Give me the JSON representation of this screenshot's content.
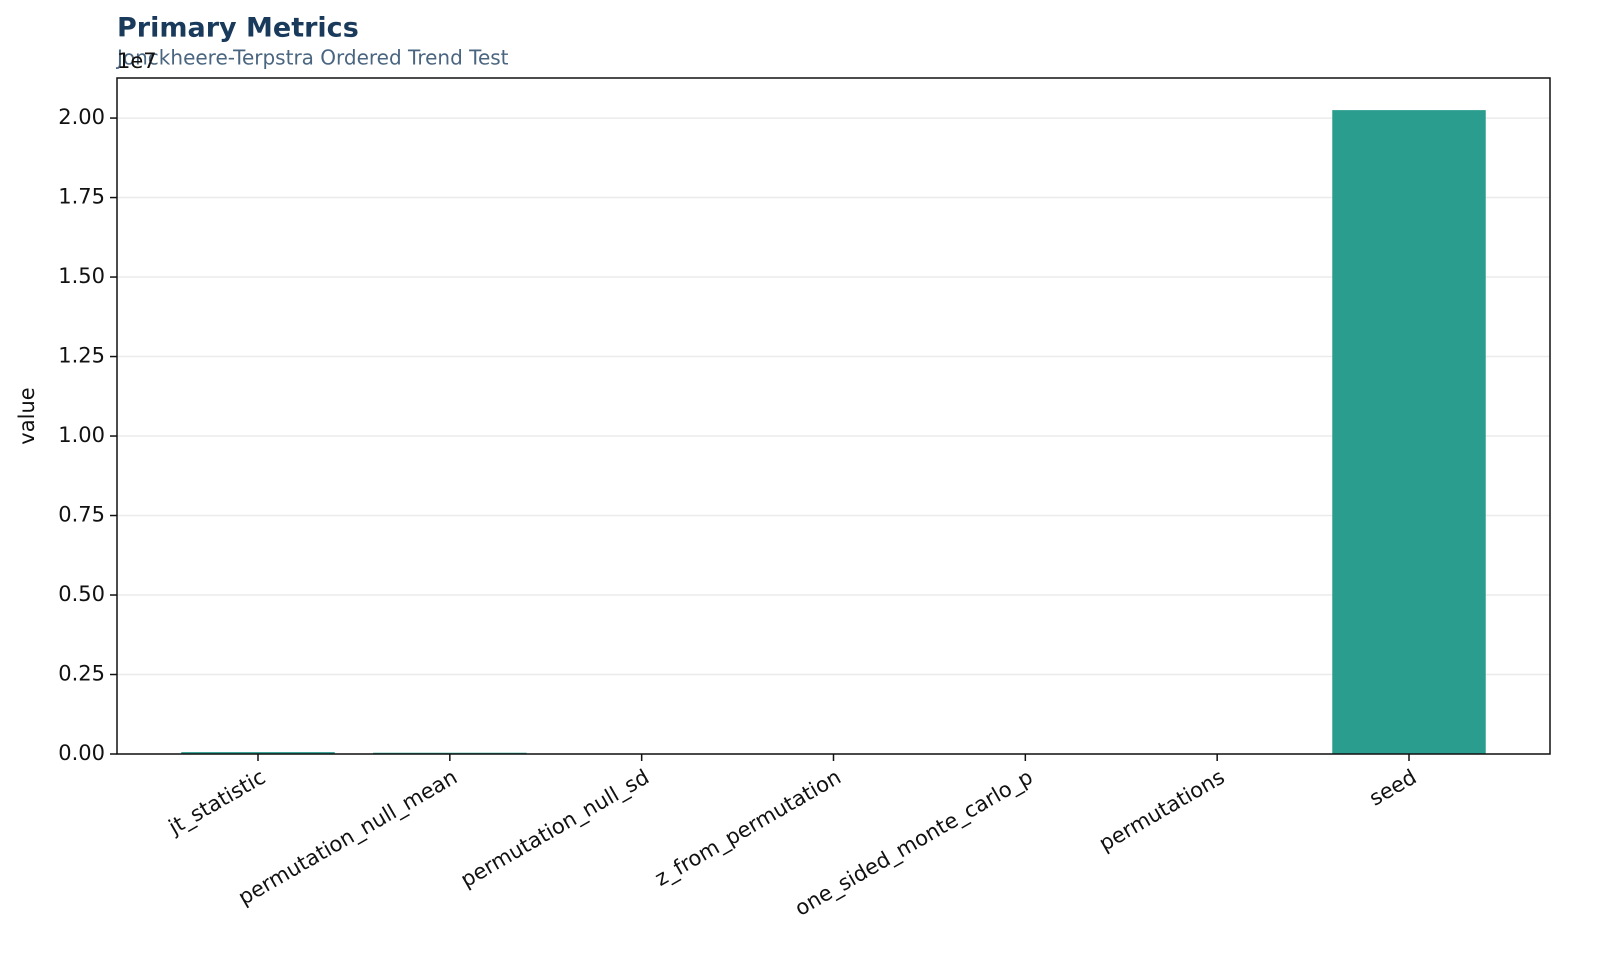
{
  "chart_data": {
    "type": "bar",
    "title": "Primary Metrics",
    "subtitle": "Jonckheere-Terpstra Ordered Trend Test",
    "y_label": "value",
    "offset_text": "1e7",
    "categories": [
      "jt_statistic",
      "permutation_null_mean",
      "permutation_null_sd",
      "z_from_permutation",
      "one_sided_monte_carlo_p",
      "permutations",
      "seed"
    ],
    "values": [
      60000,
      40000,
      0,
      0,
      0,
      0,
      20250000
    ],
    "color": "#2a9d8f",
    "ylim": [
      0,
      21260000
    ],
    "yticks": [
      {
        "value": 0,
        "label": "0.00"
      },
      {
        "value": 2500000,
        "label": "0.25"
      },
      {
        "value": 5000000,
        "label": "0.50"
      },
      {
        "value": 7500000,
        "label": "0.75"
      },
      {
        "value": 10000000,
        "label": "1.00"
      },
      {
        "value": 12500000,
        "label": "1.25"
      },
      {
        "value": 15000000,
        "label": "1.50"
      },
      {
        "value": 17500000,
        "label": "1.75"
      },
      {
        "value": 20000000,
        "label": "2.00"
      }
    ],
    "grid": true
  }
}
